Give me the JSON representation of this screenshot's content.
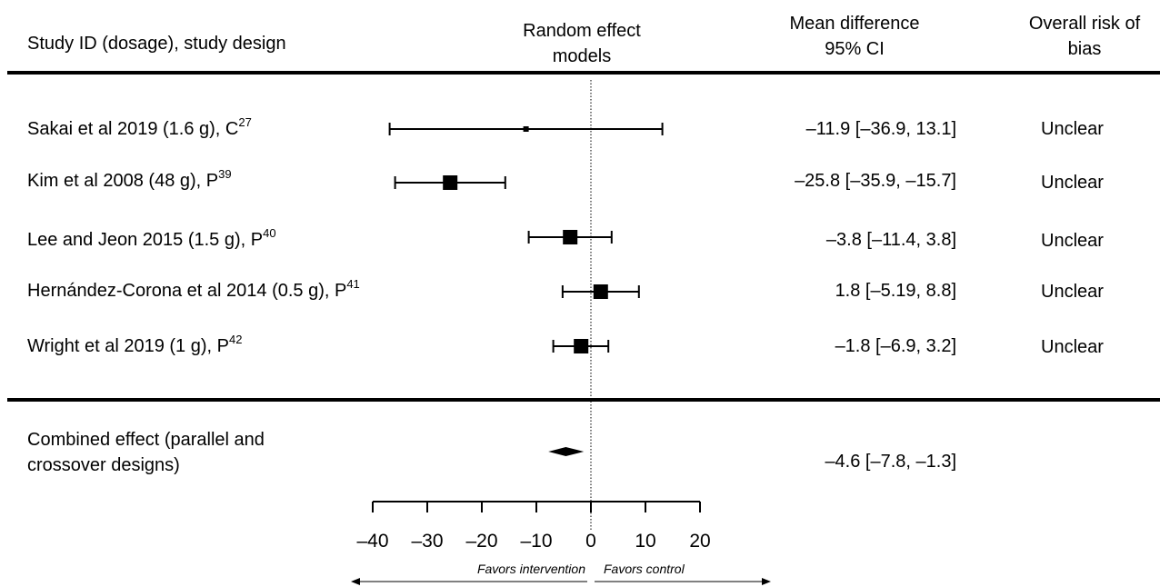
{
  "headers": {
    "study": "Study ID (dosage), study design",
    "model_line1": "Random effect",
    "model_line2": "models",
    "md_line1": "Mean difference",
    "md_line2": "95% CI",
    "bias_line1": "Overall risk of",
    "bias_line2": "bias"
  },
  "studies": [
    {
      "label": "Sakai et al  2019 (1.6 g), C",
      "ref": "27",
      "ci_text": "–11.9 [–36.9, 13.1]",
      "bias": "Unclear"
    },
    {
      "label": "Kim et al 2008 (48 g), P",
      "ref": "39",
      "ci_text": "–25.8 [–35.9, –15.7]",
      "bias": "Unclear"
    },
    {
      "label": "Lee and Jeon 2015 (1.5 g), P",
      "ref": "40",
      "ci_text": "–3.8 [–11.4, 3.8]",
      "bias": "Unclear"
    },
    {
      "label": "Hernández-Corona et al 2014 (0.5 g), P",
      "ref": "41",
      "ci_text": "1.8 [–5.19, 8.8]",
      "bias": "Unclear"
    },
    {
      "label": "Wright et al 2019 (1 g), P",
      "ref": "42",
      "ci_text": "–1.8 [–6.9, 3.2]",
      "bias": "Unclear"
    }
  ],
  "combined": {
    "label_line1": "Combined effect (parallel and",
    "label_line2": "crossover designs)",
    "ci_text": "–4.6 [–7.8, –1.3]"
  },
  "favors_intervention": "Favors intervention",
  "favors_control": "Favors control",
  "chart_data": {
    "type": "forest",
    "xlim": [
      -40,
      20
    ],
    "x_ticks": [
      -40,
      -30,
      -20,
      -10,
      0,
      10,
      20
    ],
    "x_tick_labels": [
      "–40",
      "–30",
      "–20",
      "–10",
      "0",
      "10",
      "20"
    ],
    "reference_line": 0,
    "studies": [
      {
        "name": "Sakai et al  2019 (1.6 g), C",
        "mean": -11.9,
        "lower": -36.9,
        "upper": 13.1,
        "weight_marker": "small"
      },
      {
        "name": "Kim et al 2008 (48 g), P",
        "mean": -25.8,
        "lower": -35.9,
        "upper": -15.7,
        "weight_marker": "large"
      },
      {
        "name": "Lee and Jeon 2015 (1.5 g), P",
        "mean": -3.8,
        "lower": -11.4,
        "upper": 3.8,
        "weight_marker": "large"
      },
      {
        "name": "Hernández-Corona et al 2014 (0.5 g), P",
        "mean": 1.8,
        "lower": -5.19,
        "upper": 8.8,
        "weight_marker": "large"
      },
      {
        "name": "Wright et al 2019 (1 g), P",
        "mean": -1.8,
        "lower": -6.9,
        "upper": 3.2,
        "weight_marker": "large"
      }
    ],
    "combined": {
      "mean": -4.6,
      "lower": -7.8,
      "upper": -1.3
    }
  }
}
